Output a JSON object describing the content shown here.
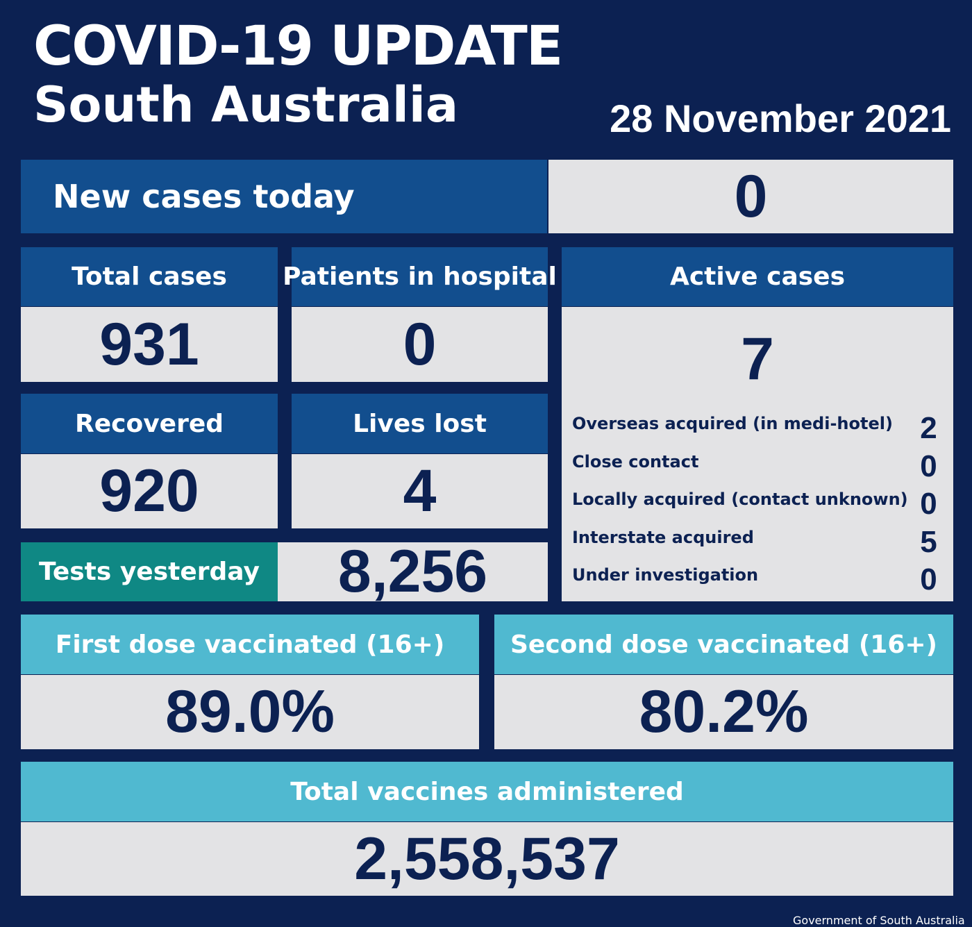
{
  "header": {
    "title": "COVID-19 UPDATE",
    "subtitle": "South Australia",
    "date": "28 November 2021"
  },
  "new_cases": {
    "label": "New cases today",
    "value": "0"
  },
  "total_cases": {
    "label": "Total cases",
    "value": "931"
  },
  "hospital": {
    "label": "Patients in hospital",
    "value": "0"
  },
  "recovered": {
    "label": "Recovered",
    "value": "920"
  },
  "lives_lost": {
    "label": "Lives lost",
    "value": "4"
  },
  "tests": {
    "label": "Tests yesterday",
    "value": "8,256"
  },
  "active": {
    "label": "Active cases",
    "value": "7",
    "breakdown": [
      {
        "label": "Overseas acquired (in medi-hotel)",
        "value": "2"
      },
      {
        "label": "Close contact",
        "value": "0"
      },
      {
        "label": "Locally acquired (contact unknown)",
        "value": "0"
      },
      {
        "label": "Interstate acquired",
        "value": "5"
      },
      {
        "label": "Under investigation",
        "value": "0"
      }
    ]
  },
  "first_dose": {
    "label": "First dose vaccinated (16+)",
    "value": "89.0%"
  },
  "second_dose": {
    "label": "Second dose vaccinated (16+)",
    "value": "80.2%"
  },
  "total_vaccines": {
    "label": "Total vaccines administered",
    "value": "2,558,537"
  },
  "footer": "Government of South Australia"
}
